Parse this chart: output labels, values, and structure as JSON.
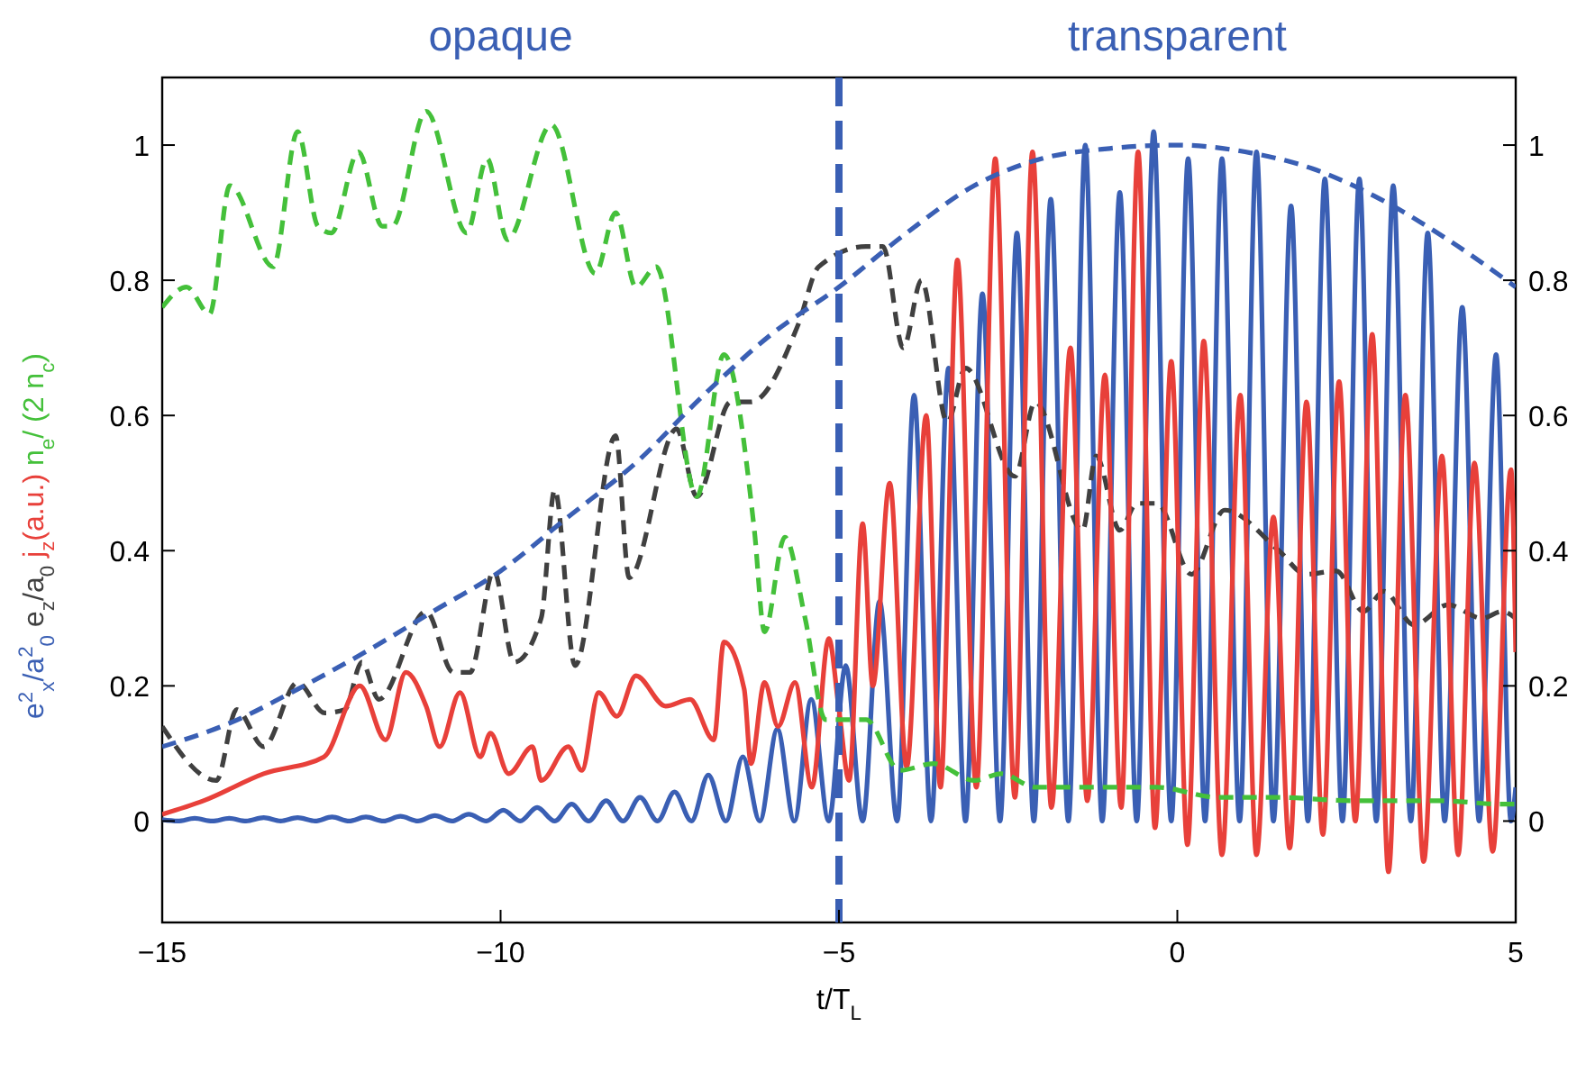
{
  "chart_data": {
    "type": "line",
    "xlabel": "t/T$_{L}$",
    "xlim": [
      -15,
      5
    ],
    "xticks": [
      -15,
      -10,
      -5,
      0,
      5
    ],
    "ylim": [
      -0.15,
      1.1
    ],
    "yticks": [
      0,
      0.2,
      0.4,
      0.6,
      0.8,
      1
    ],
    "y2lim": [
      -0.15,
      1.1
    ],
    "y2ticks": [
      0,
      0.2,
      0.4,
      0.6,
      0.8,
      1
    ],
    "grid": false,
    "annotations": [
      "opaque",
      "transparent"
    ],
    "ref_lines": [
      {
        "axis": "x",
        "value": -5,
        "color": "#3a5fb4",
        "line_style": "dashed"
      }
    ],
    "series": [
      {
        "name": "e$^{2}$$_{x}$/a$^{2}$$_{0}$",
        "color": "#3a5fb4",
        "line_style": "solid",
        "x": [
          -15,
          -14.77,
          -14.52,
          -14.26,
          -14.01,
          -13.76,
          -13.5,
          -13.25,
          -13,
          -12.74,
          -12.49,
          -12.24,
          -11.99,
          -11.73,
          -11.48,
          -11.22,
          -10.97,
          -10.72,
          -10.47,
          -10.21,
          -9.96,
          -9.71,
          -9.46,
          -9.2,
          -8.95,
          -8.7,
          -8.44,
          -8.19,
          -7.94,
          -7.68,
          -7.43,
          -7.18,
          -6.93,
          -6.67,
          -6.42,
          -6.17,
          -5.91,
          -5.66,
          -5.41,
          -5.15,
          -4.9,
          -4.65,
          -4.4,
          -4.14,
          -3.89,
          -3.64,
          -3.38,
          -3.13,
          -2.88,
          -2.62,
          -2.37,
          -2.12,
          -1.87,
          -1.61,
          -1.36,
          -1.11,
          -0.85,
          -0.6,
          -0.35,
          -0.09,
          0.16,
          0.41,
          0.66,
          0.92,
          1.17,
          1.42,
          1.68,
          1.93,
          2.18,
          2.44,
          2.69,
          2.94,
          3.19,
          3.45,
          3.7,
          3.95,
          4.21,
          4.46,
          4.71,
          4.93,
          5
        ],
        "values": [
          0.002,
          0,
          0.004,
          0,
          0.004,
          0,
          0.005,
          0,
          0.005,
          0,
          0.006,
          0,
          0.006,
          0,
          0.007,
          0,
          0.008,
          0,
          0.01,
          0,
          0.016,
          0,
          0.02,
          0,
          0.025,
          0,
          0.03,
          0,
          0.035,
          0,
          0.043,
          0,
          0.068,
          0,
          0.095,
          0,
          0.136,
          0,
          0.18,
          0,
          0.23,
          0,
          0.325,
          0,
          0.63,
          0,
          0.67,
          0,
          0.78,
          0,
          0.87,
          0,
          0.92,
          0,
          1,
          0,
          0.93,
          0,
          1.02,
          0,
          0.98,
          0,
          0.98,
          0,
          0.99,
          0,
          0.91,
          0,
          0.95,
          0,
          0.95,
          0,
          0.94,
          0,
          0.87,
          0,
          0.76,
          0,
          0.69,
          0,
          0.05
        ]
      },
      {
        "name": "e$_{z}$/a$_{0}$",
        "color": "#404040",
        "line_style": "dashed",
        "x": [
          -15,
          -14.2,
          -13.9,
          -13.5,
          -13,
          -12.6,
          -12.3,
          -12.05,
          -11.8,
          -11.1,
          -10.7,
          -10.45,
          -10.1,
          -9.8,
          -9.4,
          -9.2,
          -8.9,
          -8.3,
          -8.1,
          -7.4,
          -7.1,
          -6.6,
          -6.3,
          -5.6,
          -5.3,
          -4.6,
          -4.35,
          -4.05,
          -3.78,
          -3.4,
          -3.13,
          -2.4,
          -2.1,
          -1.4,
          -1.2,
          -0.85,
          -0.6,
          -0.3,
          0.21,
          0.7,
          1.5,
          1.9,
          2.35,
          2.75,
          3.05,
          3.5,
          4,
          4.5,
          4.8,
          5
        ],
        "values": [
          0.14,
          0.06,
          0.165,
          0.11,
          0.205,
          0.16,
          0.165,
          0.235,
          0.18,
          0.31,
          0.22,
          0.22,
          0.37,
          0.235,
          0.3,
          0.49,
          0.23,
          0.57,
          0.36,
          0.58,
          0.48,
          0.62,
          0.62,
          0.735,
          0.82,
          0.85,
          0.85,
          0.7,
          0.8,
          0.59,
          0.67,
          0.51,
          0.62,
          0.43,
          0.54,
          0.43,
          0.47,
          0.47,
          0.365,
          0.46,
          0.4,
          0.365,
          0.37,
          0.31,
          0.34,
          0.29,
          0.32,
          0.3,
          0.31,
          0.3
        ]
      },
      {
        "name": "j$_{z}$(a.u.)",
        "color": "#e8403a",
        "line_style": "solid",
        "x": [
          -15,
          -14.39,
          -13.5,
          -12.61,
          -12.08,
          -11.7,
          -11.4,
          -11.1,
          -10.9,
          -10.6,
          -10.3,
          -10.15,
          -9.88,
          -9.53,
          -9.4,
          -9,
          -8.8,
          -8.55,
          -8.28,
          -8,
          -7.56,
          -7.2,
          -6.85,
          -6.7,
          -6.4,
          -6.3,
          -6.1,
          -5.9,
          -5.65,
          -5.4,
          -5.15,
          -5,
          -4.85,
          -4.65,
          -4.5,
          -4.25,
          -4,
          -3.71,
          -3.5,
          -3.25,
          -2.97,
          -2.69,
          -2.4,
          -2.14,
          -1.86,
          -1.58,
          -1.33,
          -1.07,
          -0.83,
          -0.58,
          -0.33,
          -0.09,
          0.15,
          0.39,
          0.66,
          0.93,
          1.17,
          1.42,
          1.66,
          1.91,
          2.15,
          2.39,
          2.63,
          2.88,
          3.12,
          3.37,
          3.64,
          3.91,
          4.15,
          4.39,
          4.66,
          4.93,
          5
        ],
        "values": [
          0.01,
          0.03,
          0.07,
          0.095,
          0.2,
          0.12,
          0.22,
          0.17,
          0.11,
          0.19,
          0.095,
          0.13,
          0.07,
          0.11,
          0.06,
          0.11,
          0.075,
          0.19,
          0.155,
          0.215,
          0.17,
          0.18,
          0.12,
          0.265,
          0.195,
          0.085,
          0.205,
          0.14,
          0.205,
          0.05,
          0.27,
          0.165,
          0.06,
          0.44,
          0.2,
          0.5,
          0.08,
          0.6,
          0.05,
          0.83,
          0.05,
          0.98,
          0.035,
          0.99,
          0.02,
          0.7,
          0.03,
          0.66,
          0.02,
          0.99,
          -0.01,
          0.68,
          -0.035,
          0.71,
          -0.05,
          0.63,
          -0.05,
          0.45,
          -0.04,
          0.62,
          -0.02,
          0.65,
          0,
          0.72,
          -0.075,
          0.63,
          -0.06,
          0.54,
          -0.05,
          0.53,
          -0.045,
          0.52,
          0.25
        ]
      },
      {
        "name": "n$_{e}$/ (2 n$_{c}$)",
        "color": "#44c03a",
        "line_style": "dashed",
        "x": [
          -15,
          -14.64,
          -14.3,
          -14,
          -13.36,
          -13,
          -12.7,
          -12.5,
          -12.1,
          -11.75,
          -11.6,
          -11.1,
          -10.5,
          -10.2,
          -9.9,
          -9.25,
          -8.6,
          -8.3,
          -8,
          -7.7,
          -7.1,
          -6.7,
          -6.25,
          -6.1,
          -5.8,
          -5.5,
          -5.2,
          -4.6,
          -4.1,
          -3.6,
          -3,
          -2.6,
          -2.1,
          -1.4,
          -0.3,
          0.6,
          1.5,
          2.6,
          3.9,
          4.8,
          5
        ],
        "values": [
          0.76,
          0.79,
          0.75,
          0.94,
          0.82,
          1.02,
          0.88,
          0.87,
          0.99,
          0.88,
          0.88,
          1.05,
          0.87,
          0.98,
          0.86,
          1.03,
          0.81,
          0.9,
          0.79,
          0.82,
          0.48,
          0.69,
          0.43,
          0.28,
          0.42,
          0.3,
          0.15,
          0.15,
          0.075,
          0.085,
          0.06,
          0.07,
          0.05,
          0.05,
          0.05,
          0.035,
          0.035,
          0.03,
          0.03,
          0.025,
          0.025
        ]
      },
      {
        "color": "#3a5fb4",
        "line_style": "dashed",
        "x": [
          -15,
          -14,
          -13,
          -12,
          -11,
          -10,
          -9,
          -8,
          -7,
          -6,
          -5,
          -4,
          -3,
          -2,
          -1,
          0,
          1,
          2,
          3,
          4,
          5
        ],
        "values": [
          0.11,
          0.145,
          0.195,
          0.25,
          0.31,
          0.37,
          0.45,
          0.53,
          0.63,
          0.72,
          0.79,
          0.87,
          0.94,
          0.98,
          0.995,
          1,
          0.99,
          0.965,
          0.92,
          0.86,
          0.79
        ]
      }
    ]
  }
}
